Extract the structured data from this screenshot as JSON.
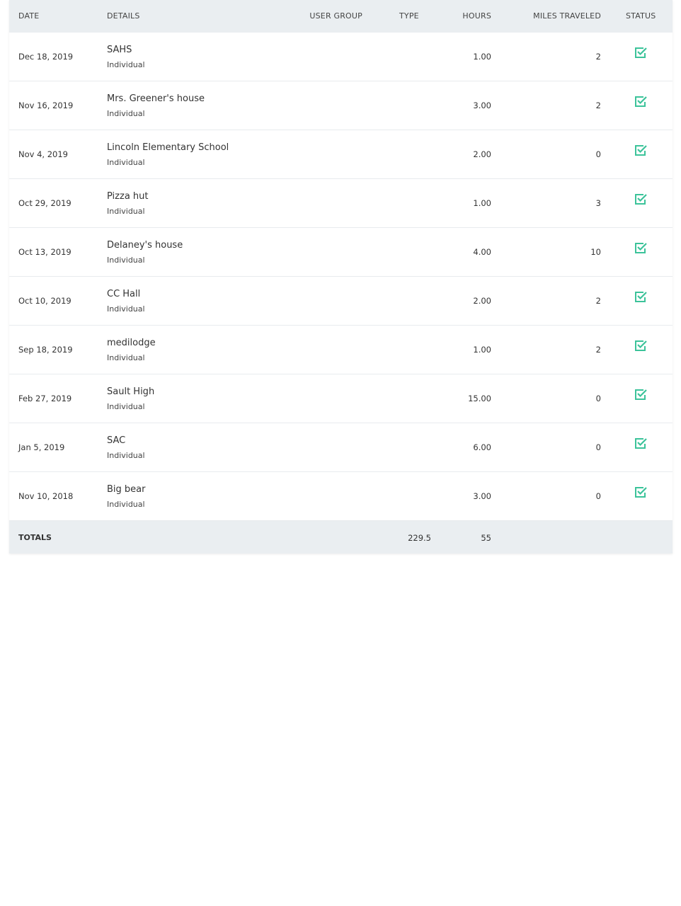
{
  "headers": {
    "date": "DATE",
    "details": "DETAILS",
    "user_group": "USER GROUP",
    "type": "TYPE",
    "hours": "HOURS",
    "miles": "MILES TRAVELED",
    "status": "STATUS"
  },
  "rows": [
    {
      "date": "Dec 18, 2019",
      "title": "SAHS",
      "sub": "Individual",
      "hours": "1.00",
      "miles": "2",
      "status": "checked"
    },
    {
      "date": "Nov 16, 2019",
      "title": "Mrs. Greener's house",
      "sub": "Individual",
      "hours": "3.00",
      "miles": "2",
      "status": "checked"
    },
    {
      "date": "Nov 4, 2019",
      "title": "Lincoln Elementary School",
      "sub": "Individual",
      "hours": "2.00",
      "miles": "0",
      "status": "checked"
    },
    {
      "date": "Oct 29, 2019",
      "title": "Pizza hut",
      "sub": "Individual",
      "hours": "1.00",
      "miles": "3",
      "status": "checked"
    },
    {
      "date": "Oct 13, 2019",
      "title": "Delaney's house",
      "sub": "Individual",
      "hours": "4.00",
      "miles": "10",
      "status": "checked"
    },
    {
      "date": "Oct 10, 2019",
      "title": "CC Hall",
      "sub": "Individual",
      "hours": "2.00",
      "miles": "2",
      "status": "checked"
    },
    {
      "date": "Sep 18, 2019",
      "title": "medilodge",
      "sub": "Individual",
      "hours": "1.00",
      "miles": "2",
      "status": "checked"
    },
    {
      "date": "Feb 27, 2019",
      "title": "Sault High",
      "sub": "Individual",
      "hours": "15.00",
      "miles": "0",
      "status": "checked"
    },
    {
      "date": "Jan 5, 2019",
      "title": "SAC",
      "sub": "Individual",
      "hours": "6.00",
      "miles": "0",
      "status": "checked"
    },
    {
      "date": "Nov 10, 2018",
      "title": "Big bear",
      "sub": "Individual",
      "hours": "3.00",
      "miles": "0",
      "status": "checked"
    }
  ],
  "totals": {
    "label": "TOTALS",
    "hours": "229.5",
    "miles": "55"
  },
  "colors": {
    "check": "#3cc39a",
    "header_bg": "#eaeef1"
  },
  "icons": {
    "status": "checkbox-checked-icon"
  }
}
